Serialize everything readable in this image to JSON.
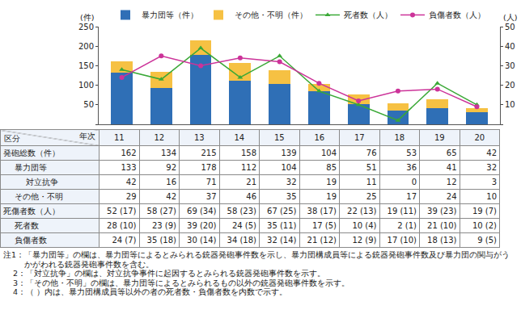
{
  "chart_data": {
    "type": "bar",
    "stacked": true,
    "grid": false,
    "legend": "top",
    "tick_labels": "y",
    "ylabel": "(件)",
    "y2label": "(人)",
    "categories": [
      "11",
      "12",
      "13",
      "14",
      "15",
      "16",
      "17",
      "18",
      "19",
      "20"
    ],
    "ylim": [
      0,
      250
    ],
    "yticks": [
      0,
      50,
      100,
      150,
      200,
      250
    ],
    "y2lim": [
      0,
      50
    ],
    "y2ticks": [
      0,
      10,
      20,
      30,
      40,
      50
    ],
    "series": [
      {
        "name": "暴力団等（件）",
        "type": "bar",
        "color": "#2f6fb6",
        "values": [
          133,
          92,
          178,
          112,
          104,
          85,
          51,
          36,
          41,
          32
        ]
      },
      {
        "name": "その他・不明（件）",
        "type": "bar",
        "color": "#f6c143",
        "values": [
          29,
          42,
          37,
          46,
          35,
          19,
          25,
          17,
          24,
          10
        ]
      },
      {
        "name": "死者数（人）",
        "type": "line",
        "axis": "y2",
        "color": "#3aa836",
        "marker": "triangle-up",
        "values": [
          28,
          23,
          39,
          24,
          35,
          17,
          10,
          2,
          21,
          10
        ]
      },
      {
        "name": "負傷者数（人）",
        "type": "line",
        "axis": "y2",
        "color": "#cc3399",
        "marker": "circle",
        "values": [
          24,
          35,
          30,
          34,
          32,
          21,
          12,
          17,
          18,
          9
        ]
      }
    ]
  },
  "table": {
    "corner_left": "区分",
    "corner_right": "年次",
    "rows": [
      {
        "label": "発砲総数（件）",
        "cells": [
          "162",
          "134",
          "215",
          "158",
          "139",
          "104",
          "76",
          "53",
          "65",
          "42"
        ],
        "rows": [
          {
            "label": "暴力団等",
            "cells": [
              "133",
              "92",
              "178",
              "112",
              "104",
              "85",
              "51",
              "36",
              "41",
              "32"
            ],
            "rows": [
              {
                "label": "対立抗争",
                "cells": [
                  "42",
                  "16",
                  "71",
                  "21",
                  "32",
                  "19",
                  "11",
                  "0",
                  "12",
                  "3"
                ]
              }
            ]
          },
          {
            "label": "その他・不明",
            "cells": [
              "29",
              "42",
              "37",
              "46",
              "35",
              "19",
              "25",
              "17",
              "24",
              "10"
            ]
          }
        ]
      },
      {
        "label": "死傷者数（人）",
        "cells": [
          "52 (17)",
          "58 (27)",
          "69 (34)",
          "58 (23)",
          "67 (25)",
          "38 (17)",
          "22 (13)",
          "19 (11)",
          "39 (23)",
          "19 (7)"
        ],
        "rows": [
          {
            "label": "死者数",
            "cells": [
              "28 (10)",
              "23 (9)",
              "39 (20)",
              "24 (5)",
              "35 (11)",
              "17 (5)",
              "10 (4)",
              "2 (1)",
              "21 (10)",
              "10 (2)"
            ]
          },
          {
            "label": "負傷者数",
            "cells": [
              "24 (7)",
              "35 (18)",
              "30 (14)",
              "34 (18)",
              "32 (14)",
              "21 (12)",
              "12 (9)",
              "17 (10)",
              "18 (13)",
              "9 (5)"
            ]
          }
        ]
      }
    ]
  },
  "notes": [
    "注1：「暴力団等」の欄は、暴力団等によるとみられる銃器発砲事件数を示し、暴力団構成員等による銃器発砲事件数及び暴力団の関与がうかがわれる銃器発砲事件数を含む。",
    "2：「対立抗争」の欄は、対立抗争事件に起因するとみられる銃器発砲事件数を示す。",
    "3：「その他・不明」の欄は、暴力団等によるとみられるもの以外の銃器発砲事件数を示す。",
    "4：（ ）内は、暴力団構成員等以外の者の死者数・負傷者数を内数で示す。"
  ]
}
